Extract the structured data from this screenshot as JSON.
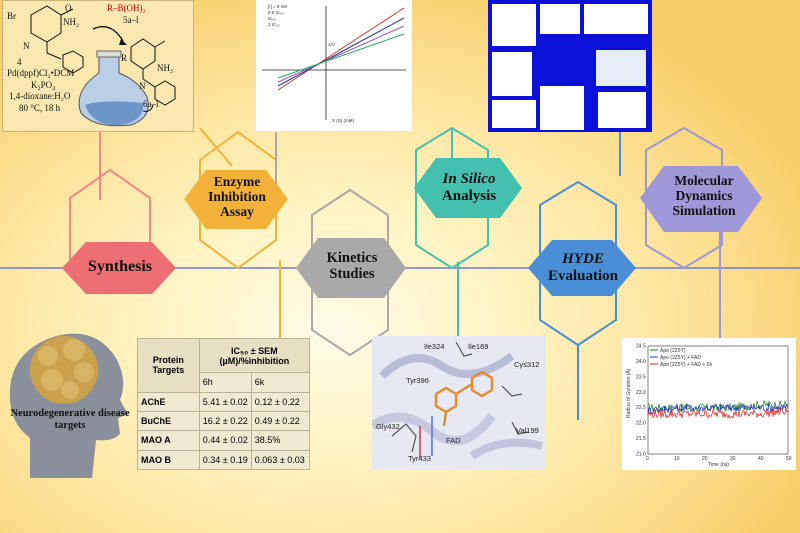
{
  "stages": {
    "synthesis": "Synthesis",
    "enzyme": "Enzyme Inhibition Assay",
    "kinetics": "Kinetics Studies",
    "insilico_italic": "In Silico",
    "insilico_rest": "Analysis",
    "hyde_italic": "HYDE",
    "hyde_rest": "Evaluation",
    "md": "Molecular Dynamics Simulation"
  },
  "colors": {
    "synthesis": "#ee6f73",
    "enzyme": "#f2b23a",
    "kinetics": "#a9a9a9",
    "insilico": "#44c0ae",
    "hyde": "#4a8ed6",
    "md": "#9f98d8",
    "background_center": "#fffbe6",
    "background_edge": "#f7cf6a"
  },
  "scheme": {
    "reagent": "R–B(OH)₂",
    "reagent_id": "5a–l",
    "compound_start": "4",
    "conditions": [
      "Pd(dppf)Cl₂•DCM",
      "K₃PO₄",
      "1,4-dioxane:H₂O",
      "80 °C, 18 h"
    ],
    "product_id": "6a–l",
    "nh2": "NH₂",
    "o": "O",
    "n_h": "N",
    "h": "H",
    "br": "Br",
    "r": "R"
  },
  "neuro": {
    "label": "Neurodegenerative disease targets"
  },
  "table": {
    "col1": "Protein Targets",
    "col2_head": "IC₅₀ ± SEM (µM)/%inhibition",
    "sub1": "6h",
    "sub2": "6k",
    "rows": [
      {
        "t": "AChE",
        "a": "5.41 ± 0.02",
        "b": "0.12 ± 0.22"
      },
      {
        "t": "BuChE",
        "a": "16.2 ± 0.22",
        "b": "0.49 ± 0.22"
      },
      {
        "t": "MAO A",
        "a": "0.44 ± 0.02",
        "b": "38.5%"
      },
      {
        "t": "MAO B",
        "a": "0.34 ± 0.19",
        "b": "0.063 ± 0.03"
      }
    ]
  },
  "docking": {
    "residues": [
      "Ile324",
      "Ile169",
      "Cys312",
      "Tyr396",
      "Gly432",
      "FAD",
      "Val199",
      "Tyr433"
    ]
  },
  "kinetics_plot": {
    "xlabel": "S (S) (mM)",
    "ylabel": "1/V",
    "legend": [
      "[I] = 0 nM",
      "0.5 IC₅₀",
      "IC₅₀",
      "2 IC₅₀"
    ],
    "colors": [
      "#c0392b",
      "#2c3e90",
      "#9b59b6",
      "#27ae60"
    ]
  },
  "md_plot": {
    "legend": [
      "Apo (2Z5Y)",
      "Apo (2Z5Y) + FAD",
      "Apo (2Z5Y) + FAD + 6h"
    ],
    "colors": [
      "#1a7a1a",
      "#1f35c8",
      "#d42020"
    ],
    "ylabel": "Radius of Gyration (Å)",
    "xlabel": "Time (ns)",
    "y_ticks": [
      "21.0",
      "21.5",
      "22.0",
      "22.5",
      "23.0",
      "23.5",
      "24.0",
      "24.5"
    ],
    "x_ticks": [
      "0",
      "10",
      "20",
      "30",
      "40",
      "50"
    ],
    "ylim": [
      21.0,
      24.5
    ],
    "xlim": [
      0,
      50
    ]
  },
  "chart_data": {
    "type": "line",
    "xlabel": "Time (ns)",
    "ylabel": "Radius of Gyration (Å)",
    "xlim": [
      0,
      50
    ],
    "ylim": [
      21.0,
      24.5
    ],
    "series": [
      {
        "name": "Apo (2Z5Y)",
        "values": [
          22.5,
          22.5,
          22.5,
          22.5,
          22.6,
          22.6
        ]
      },
      {
        "name": "Apo (2Z5Y) + FAD",
        "values": [
          22.4,
          22.5,
          22.5,
          22.5,
          22.5,
          22.5
        ]
      },
      {
        "name": "Apo (2Z5Y) + FAD + 6h",
        "values": [
          22.3,
          22.3,
          22.3,
          22.3,
          22.3,
          22.4
        ]
      }
    ],
    "x": [
      0,
      10,
      20,
      30,
      40,
      50
    ]
  }
}
